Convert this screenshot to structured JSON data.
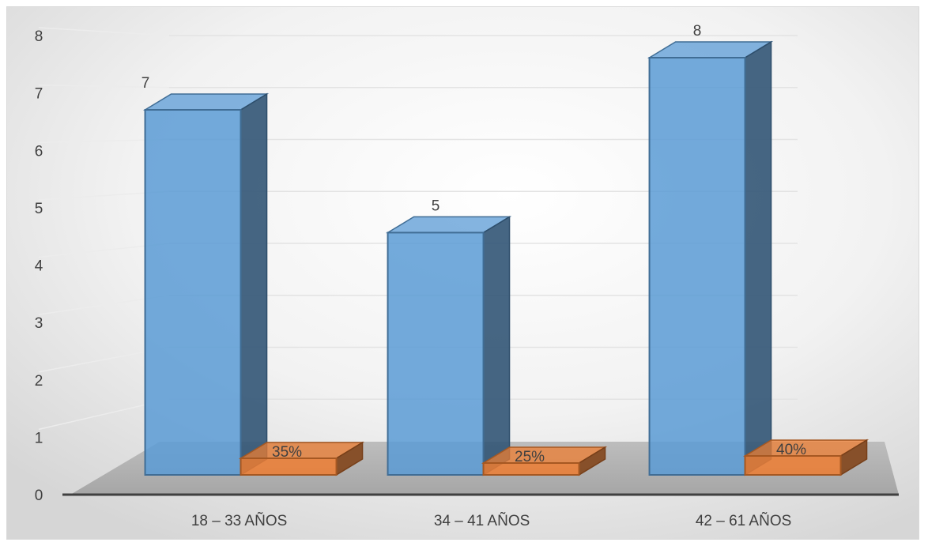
{
  "chart_data": {
    "type": "bar",
    "title": "",
    "xlabel": "",
    "ylabel": "",
    "ylim": [
      0,
      8
    ],
    "yticks": [
      0,
      1,
      2,
      3,
      4,
      5,
      6,
      7,
      8
    ],
    "grid": true,
    "legend": "none",
    "categories": [
      "18 – 33 AÑOS",
      "34 – 41 AÑOS",
      "42 – 61 AÑOS"
    ],
    "series": [
      {
        "values": [
          7,
          5,
          8
        ],
        "labels": [
          "7",
          "5",
          "8"
        ],
        "color": "#5b9bd5"
      },
      {
        "values": [
          0.35,
          0.25,
          0.4
        ],
        "labels": [
          "35%",
          "25%",
          "40%"
        ],
        "color": "#ed7d31"
      }
    ]
  }
}
